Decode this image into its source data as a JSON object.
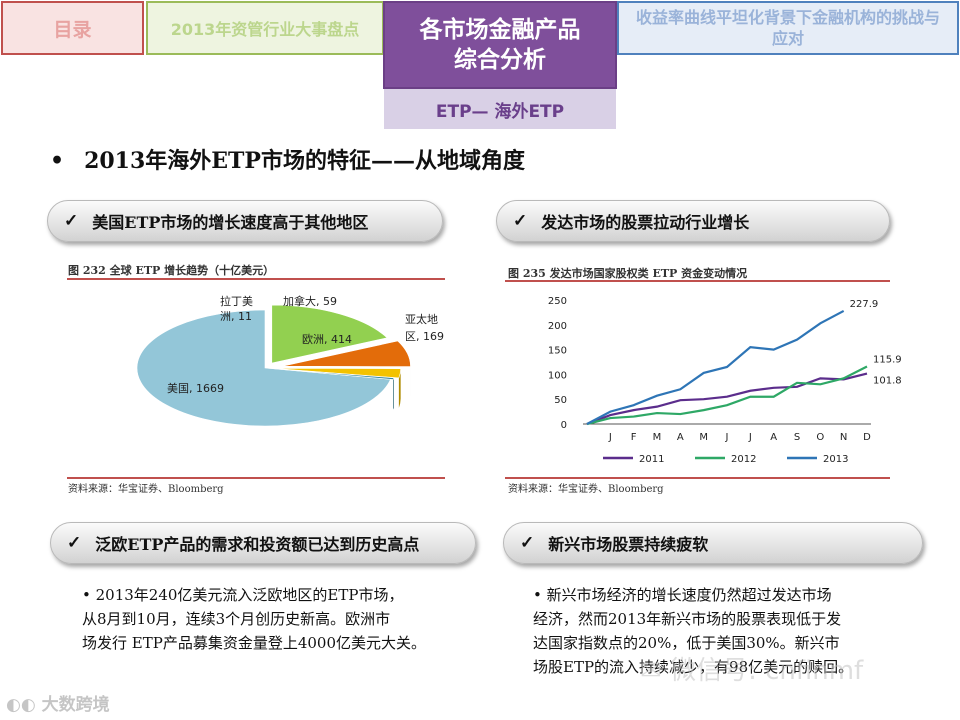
{
  "nav": {
    "tabs": [
      {
        "label": "目录"
      },
      {
        "label": "2013年资管行业大事盘点"
      },
      {
        "label_line1": "各市场金融产品",
        "label_line2": "综合分析"
      },
      {
        "label": "收益率曲线平坦化背景下金融机构的挑战与应对"
      }
    ],
    "subtab": "ETP— 海外ETP"
  },
  "heading": {
    "bullet": "•",
    "text": "2013年海外ETP市场的特征——从地域角度"
  },
  "pills": {
    "check": "✓",
    "top_left": "美国ETP市场的增长速度高于其他地区",
    "top_right": "发达市场的股票拉动行业增长",
    "bottom_left": "泛欧ETP产品的需求和投资额已达到历史高点",
    "bottom_right": "新兴市场股票持续疲软"
  },
  "pie_panel": {
    "title": "图 232  全球 ETP 增长趋势（十亿美元）",
    "source": "资料来源：华宝证券、Bloomberg",
    "labels": {
      "latam_1": "拉丁美",
      "latam_2": "洲, 11",
      "canada": "加拿大, 59",
      "europe": "欧洲, 414",
      "apac_1": "亚太地",
      "apac_2": "区, 169",
      "us": "美国, 1669"
    }
  },
  "line_panel": {
    "title": "图 235  发达市场国家股权类 ETP 资金变动情况",
    "source": "资料来源：华宝证券、Bloomberg"
  },
  "chart_data": [
    {
      "type": "pie",
      "title": "图 232  全球 ETP 增长趋势（十亿美元）",
      "slices": [
        {
          "name": "美国",
          "value": 1669,
          "color": "#93c6d8"
        },
        {
          "name": "欧洲",
          "value": 414,
          "color": "#92d050"
        },
        {
          "name": "亚太地区",
          "value": 169,
          "color": "#e36c0a"
        },
        {
          "name": "加拿大",
          "value": 59,
          "color": "#f3c200"
        },
        {
          "name": "拉丁美洲",
          "value": 11,
          "color": "#31859b"
        }
      ]
    },
    {
      "type": "line",
      "title": "图 235  发达市场国家股权类 ETP 资金变动情况",
      "categories": [
        "",
        "J",
        "F",
        "M",
        "A",
        "M",
        "J",
        "J",
        "A",
        "S",
        "O",
        "N",
        "D"
      ],
      "yticks": [
        0,
        50,
        100,
        150,
        200,
        250
      ],
      "ylim": [
        0,
        250
      ],
      "legend_position": "bottom",
      "grid": false,
      "series": [
        {
          "name": "2011",
          "color": "#5b2d8c",
          "values": [
            0,
            18,
            28,
            35,
            48,
            50,
            55,
            67,
            73,
            75,
            92,
            90,
            101.8
          ],
          "end_label": "101.8"
        },
        {
          "name": "2012",
          "color": "#2ea866",
          "values": [
            0,
            12,
            15,
            22,
            20,
            28,
            38,
            55,
            55,
            83,
            80,
            92,
            115.9
          ],
          "end_label": "115.9"
        },
        {
          "name": "2013",
          "color": "#2e75b6",
          "values": [
            0,
            25,
            38,
            57,
            70,
            103,
            115,
            155,
            150,
            170,
            203,
            227.9,
            null
          ],
          "end_label": "227.9"
        }
      ]
    }
  ],
  "bottom_left_text": {
    "lines": [
      "• 2013年240亿美元流入泛欧地区的ETP市场，",
      "从8月到10月，连续3个月创历史新高。欧洲市",
      "场发行 ETP产品募集资金量登上4000亿美元大关。"
    ]
  },
  "bottom_right_text": {
    "lines": [
      "• 新兴市场经济的增长速度仍然超过发达市场",
      "经济，然而2013年新兴市场的股票表现低于发",
      "达国家指数点的20%，低于美国30%。新兴市",
      "场股ETP的流入持续减少，有98亿美元的赎回。"
    ]
  },
  "watermarks": {
    "left": "大数跨境",
    "right": "微信号: cnfinmf"
  }
}
